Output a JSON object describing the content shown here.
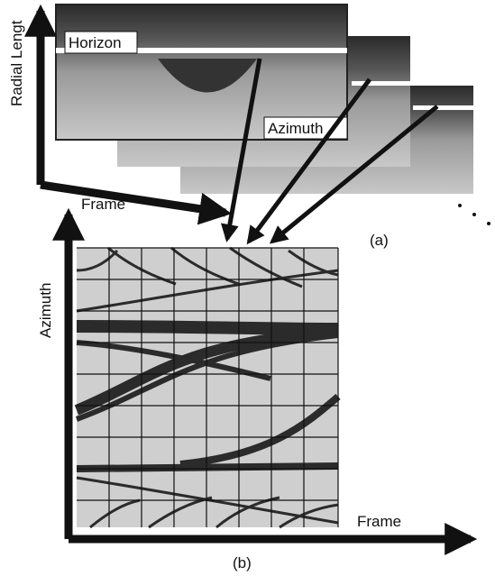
{
  "figure_a": {
    "y_axis_label": "Radial Lengt",
    "x_axis_label": "Frame",
    "labels": [
      "Horizon",
      "Azimuth"
    ],
    "caption": "(a)"
  },
  "figure_b": {
    "y_axis_label": "Azimuth",
    "x_axis_label": "Frame",
    "caption": "(b)"
  }
}
